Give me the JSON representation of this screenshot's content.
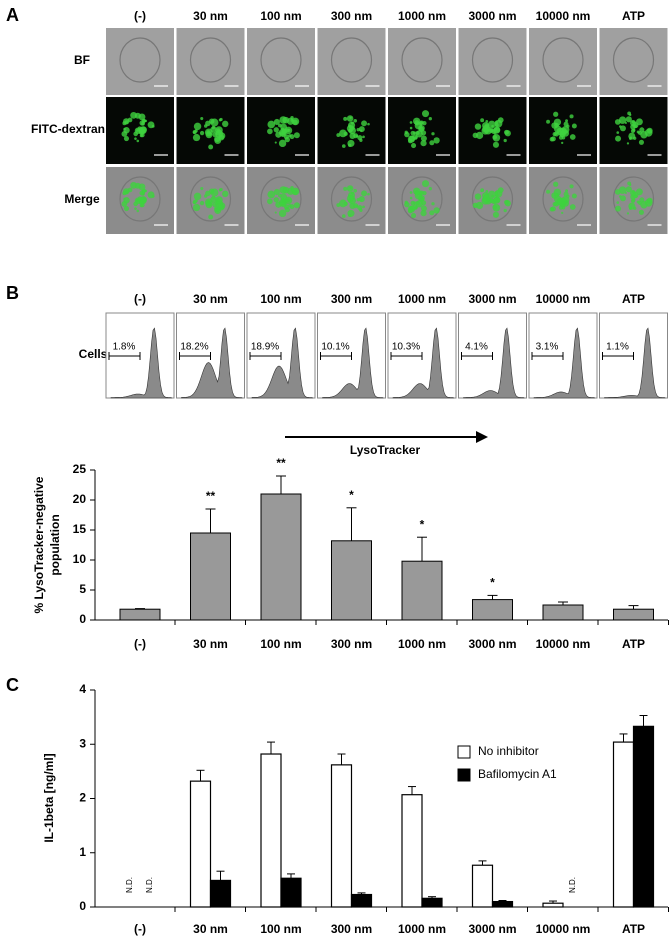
{
  "panel_a": {
    "label": "A",
    "columns": [
      "(-)",
      "30 nm",
      "100 nm",
      "300 nm",
      "1000 nm",
      "3000 nm",
      "10000 nm",
      "ATP"
    ],
    "rows": [
      "BF",
      "FITC-dextran",
      "Merge"
    ]
  },
  "panel_b": {
    "label": "B",
    "columns": [
      "(-)",
      "30 nm",
      "100 nm",
      "300 nm",
      "1000 nm",
      "3000 nm",
      "10000 nm",
      "ATP"
    ],
    "histogram_y_label": "Cells",
    "histogram_percentages": [
      "1.8%",
      "18.2%",
      "18.9%",
      "10.1%",
      "10.3%",
      "4.1%",
      "3.1%",
      "1.1%"
    ],
    "x_arrow_label": "LysoTracker"
  },
  "panel_c": {
    "label": "C"
  },
  "chart_data": [
    {
      "type": "bar",
      "ylabel": [
        "% LysoTracker-negative",
        "population"
      ],
      "categories": [
        "(-)",
        "30 nm",
        "100 nm",
        "300 nm",
        "1000 nm",
        "3000 nm",
        "10000 nm",
        "ATP"
      ],
      "values": [
        1.8,
        14.5,
        21,
        13.2,
        9.8,
        3.4,
        2.5,
        1.8
      ],
      "errors": [
        0.1,
        4,
        3,
        5.5,
        4,
        0.7,
        0.5,
        0.6
      ],
      "annotations": [
        null,
        "**",
        "**",
        "*",
        "*",
        "*",
        null,
        null
      ],
      "color": "#999999",
      "ylim": [
        0,
        25
      ],
      "yticks": [
        0,
        5,
        10,
        15,
        20,
        25
      ]
    },
    {
      "type": "grouped_bar",
      "ylabel": "IL-1beta [ng/ml]",
      "categories": [
        "(-)",
        "30 nm",
        "100 nm",
        "300 nm",
        "1000 nm",
        "3000 nm",
        "10000 nm",
        "ATP"
      ],
      "series": [
        {
          "name": "No inhibitor",
          "color": "#ffffff",
          "values": [
            null,
            2.32,
            2.82,
            2.62,
            2.07,
            0.77,
            0.07,
            3.04
          ],
          "errors": [
            null,
            0.2,
            0.22,
            0.2,
            0.15,
            0.08,
            0.04,
            0.15
          ],
          "value_labels": [
            "N.D.",
            null,
            null,
            null,
            null,
            null,
            null,
            null
          ]
        },
        {
          "name": "Bafilomycin A1",
          "color": "#000000",
          "values": [
            null,
            0.49,
            0.53,
            0.23,
            0.16,
            0.1,
            null,
            3.33
          ],
          "errors": [
            null,
            0.17,
            0.08,
            0.03,
            0.03,
            0.02,
            null,
            0.2
          ],
          "value_labels": [
            "N.D.",
            null,
            null,
            null,
            null,
            null,
            "N.D.",
            null
          ]
        }
      ],
      "ylim": [
        0,
        4
      ],
      "yticks": [
        0,
        1,
        2,
        3,
        4
      ],
      "legend": "upper right"
    }
  ]
}
